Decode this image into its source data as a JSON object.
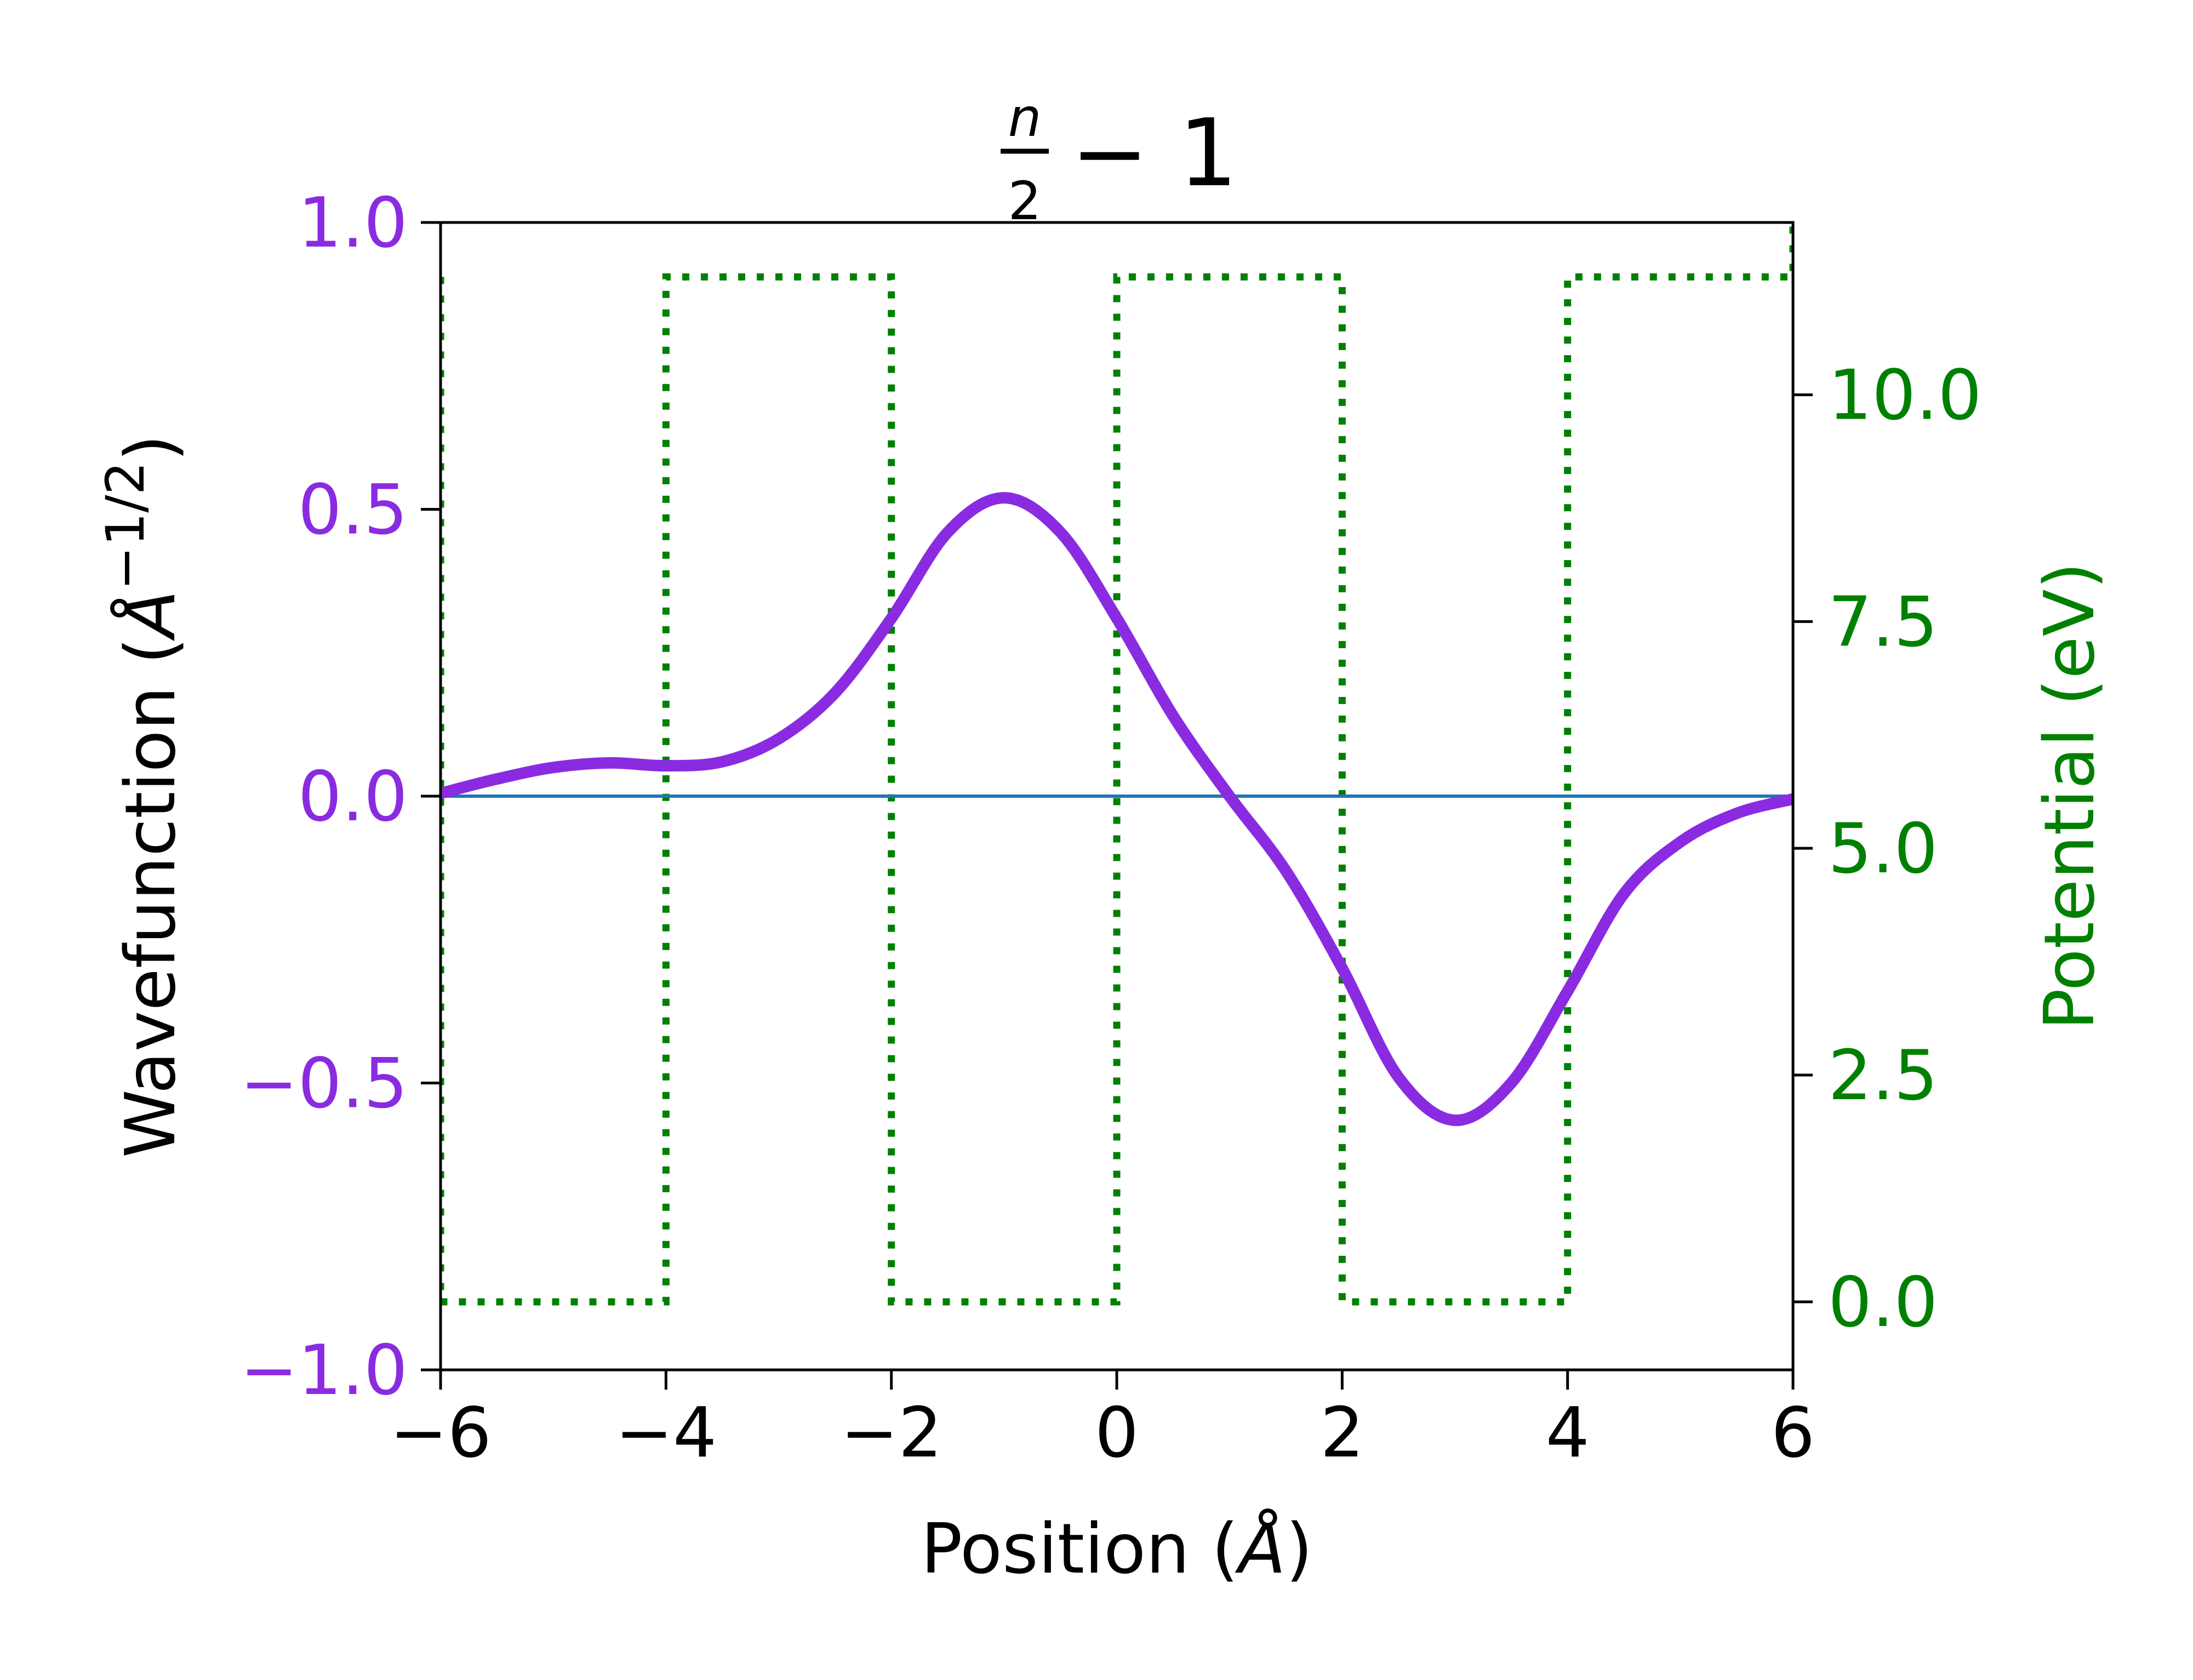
{
  "chart_data": {
    "type": "line",
    "title": {
      "numerator": "n",
      "denominator": "2",
      "rest": "− 1"
    },
    "xlabel": {
      "pre": "Position (",
      "symbol": "Å",
      "post": ")"
    },
    "ylabel_left": {
      "pre": "Wavefunction (",
      "symbol": "Å",
      "exponent": "−1/2",
      "post": ")"
    },
    "ylabel_right": "Potential (eV)",
    "xlim": [
      -6,
      6
    ],
    "ylim_left": [
      -1.0,
      1.0
    ],
    "ylim_right": [
      -0.75,
      11.9
    ],
    "x_ticks": [
      -6,
      -4,
      -2,
      0,
      2,
      4,
      6
    ],
    "x_tick_labels": [
      "−6",
      "−4",
      "−2",
      "0",
      "2",
      "4",
      "6"
    ],
    "y_left_ticks": [
      -1.0,
      -0.5,
      0.0,
      0.5,
      1.0
    ],
    "y_left_tick_labels": [
      "−1.0",
      "−0.5",
      "0.0",
      "0.5",
      "1.0"
    ],
    "y_right_ticks": [
      0.0,
      2.5,
      5.0,
      7.5,
      10.0
    ],
    "y_right_tick_labels": [
      "0.0",
      "2.5",
      "5.0",
      "7.5",
      "10.0"
    ],
    "grid": false,
    "colors": {
      "wavefunction": "#8A2BE2",
      "potential": "#008000",
      "baseline": "#1f77b4",
      "left_axis": "#8A2BE2",
      "right_axis": "#008000"
    },
    "series": [
      {
        "id": "wavefunction",
        "axis": "left",
        "style": "solid-thick",
        "x": [
          -6.0,
          -5.5,
          -5.0,
          -4.5,
          -4.0,
          -3.5,
          -3.0,
          -2.5,
          -2.0,
          -1.5,
          -1.0,
          -0.5,
          0.0,
          0.5,
          1.0,
          1.5,
          2.0,
          2.5,
          3.0,
          3.5,
          4.0,
          4.5,
          5.0,
          5.5,
          6.0
        ],
        "y": [
          0.005,
          0.03,
          0.05,
          0.058,
          0.053,
          0.06,
          0.1,
          0.18,
          0.31,
          0.46,
          0.52,
          0.46,
          0.31,
          0.14,
          0.0,
          -0.13,
          -0.3,
          -0.49,
          -0.565,
          -0.5,
          -0.34,
          -0.17,
          -0.08,
          -0.03,
          -0.005
        ]
      },
      {
        "id": "baseline",
        "axis": "left",
        "style": "solid-thin",
        "x": [
          -6,
          6
        ],
        "y": [
          0,
          0
        ]
      },
      {
        "id": "potential",
        "axis": "right",
        "style": "dotted",
        "x": [
          -6,
          -6,
          -4,
          -4,
          -2,
          -2,
          0,
          0,
          2,
          2,
          4,
          4,
          6,
          6
        ],
        "y": [
          11.3,
          0,
          0,
          11.3,
          11.3,
          0,
          0,
          11.3,
          11.3,
          0,
          0,
          11.3,
          11.3,
          11.9
        ]
      }
    ]
  }
}
